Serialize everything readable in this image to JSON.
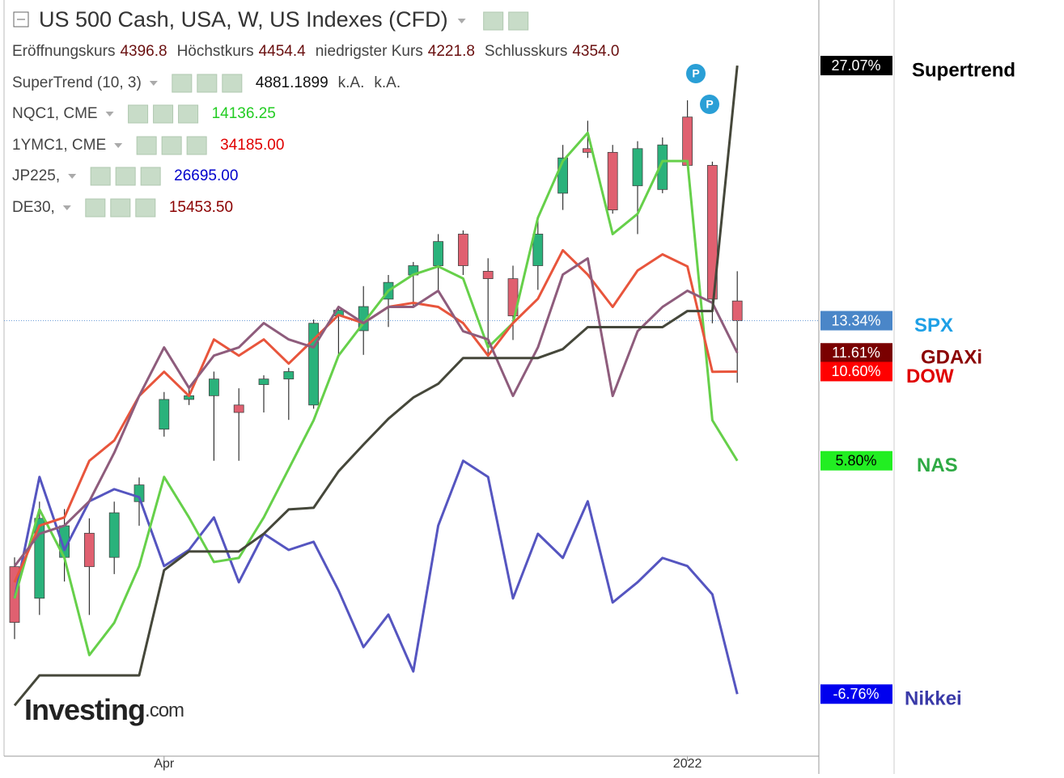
{
  "header": {
    "title": "US 500 Cash, USA, W, US Indexes (CFD)",
    "ohlc": [
      {
        "label": "Eröffnungskurs",
        "value": "4396.8"
      },
      {
        "label": "Höchstkurs",
        "value": "4454.4"
      },
      {
        "label": "niedrigster Kurs",
        "value": "4221.8"
      },
      {
        "label": "Schlusskurs",
        "value": "4354.0"
      }
    ],
    "indicators": [
      {
        "name": "SuperTrend (10, 3)",
        "values": [
          "4881.1899",
          "k.A.",
          "k.A."
        ],
        "color": "#111111"
      },
      {
        "name": "NQC1, CME",
        "values": [
          "14136.25"
        ],
        "color": "#22cc22"
      },
      {
        "name": "1YMC1, CME",
        "values": [
          "34185.00"
        ],
        "color": "#e00000"
      },
      {
        "name": "JP225,",
        "values": [
          "26695.00"
        ],
        "color": "#0000cc"
      },
      {
        "name": "DE30,",
        "values": [
          "15453.50"
        ],
        "color": "#8b0000"
      }
    ],
    "watermark": "Investing",
    "watermark_suffix": ".com"
  },
  "chart_data": {
    "type": "line",
    "categories": [
      null,
      null,
      null,
      null,
      null,
      null,
      "Apr",
      null,
      null,
      null,
      null,
      null,
      null,
      null,
      null,
      null,
      null,
      null,
      null,
      null,
      null,
      null,
      null,
      null,
      null,
      null,
      null,
      "2022",
      null,
      null
    ],
    "ylim": [
      -10.1,
      30.6
    ],
    "series": [
      {
        "name": "Supertrend",
        "type": "line",
        "color": "#45473a",
        "badge_color": "#000000",
        "badge_text": "#ffffff",
        "name_color": "#000000",
        "values": [
          -7.37,
          -5.75,
          -5.75,
          -5.75,
          -5.75,
          -5.75,
          -0.09,
          0.92,
          0.92,
          0.92,
          1.87,
          3.18,
          3.27,
          5.23,
          6.67,
          8.06,
          9.2,
          9.94,
          11.33,
          11.33,
          11.33,
          11.33,
          11.81,
          12.99,
          12.99,
          12.99,
          12.99,
          13.86,
          13.86,
          27.07
        ],
        "value_labels": [
          null,
          null,
          null,
          null,
          null,
          null,
          null,
          null,
          null,
          null,
          null,
          null,
          null,
          null,
          null,
          null,
          null,
          null,
          null,
          null,
          null,
          null,
          null,
          null,
          null,
          null,
          null,
          null,
          null,
          "27.07%"
        ]
      },
      {
        "name": "SPX",
        "type": "candlestick",
        "color": "#2ab27b",
        "down_color": "#e06070",
        "badge_color": "#4a86c8",
        "badge_text": "#ffffff",
        "name_color": "#1ea0e6",
        "open": [
          0.1,
          -1.6,
          0.6,
          1.9,
          0.6,
          3.6,
          7.5,
          9.1,
          9.3,
          8.8,
          9.9,
          10.2,
          8.8,
          13.6,
          12.8,
          14.5,
          15.8,
          16.3,
          18.0,
          16.0,
          15.6,
          16.3,
          20.2,
          22.6,
          22.4,
          20.6,
          20.4,
          24.3,
          21.7,
          14.4
        ],
        "high": [
          0.6,
          3.6,
          3.2,
          2.7,
          3.6,
          4.9,
          9.5,
          9.7,
          10.6,
          9.7,
          10.4,
          10.8,
          13.4,
          14.1,
          15.2,
          15.8,
          16.5,
          18.0,
          18.2,
          16.7,
          16.3,
          18.9,
          22.8,
          24.1,
          22.8,
          23.0,
          23.2,
          25.2,
          21.9,
          16.0
        ],
        "low": [
          -3.8,
          -2.5,
          -0.7,
          -2.5,
          -0.3,
          2.3,
          7.1,
          8.8,
          5.8,
          5.8,
          8.4,
          8.0,
          8.6,
          11.5,
          11.5,
          13.0,
          14.1,
          15.0,
          15.8,
          11.5,
          12.3,
          15.0,
          19.3,
          22.1,
          19.1,
          18.0,
          20.2,
          21.5,
          13.2,
          10.0
        ],
        "values": [
          -2.9,
          2.7,
          2.3,
          0.1,
          3.0,
          4.5,
          9.1,
          9.3,
          10.2,
          8.4,
          10.2,
          10.6,
          13.2,
          13.9,
          14.1,
          15.4,
          16.3,
          17.6,
          16.3,
          15.6,
          13.6,
          18.0,
          22.1,
          22.4,
          19.3,
          22.6,
          22.8,
          21.7,
          14.5,
          13.34
        ],
        "value_labels": [
          null,
          null,
          null,
          null,
          null,
          null,
          null,
          null,
          null,
          null,
          null,
          null,
          null,
          null,
          null,
          null,
          null,
          null,
          null,
          null,
          null,
          null,
          null,
          null,
          null,
          null,
          null,
          null,
          null,
          "13.34%"
        ]
      },
      {
        "name": "GDAXi",
        "type": "line",
        "color": "#8e5c7c",
        "badge_color": "#7a0000",
        "badge_text": "#ffffff",
        "name_color": "#8b0000",
        "values": [
          0.13,
          1.87,
          2.31,
          3.62,
          6.23,
          9.29,
          11.9,
          9.72,
          11.46,
          11.9,
          13.21,
          12.33,
          11.9,
          14.08,
          13.21,
          14.08,
          14.08,
          14.95,
          12.77,
          12.33,
          9.29,
          11.9,
          15.82,
          16.69,
          9.29,
          12.77,
          14.08,
          14.95,
          14.3,
          11.61
        ],
        "value_labels": [
          null,
          null,
          null,
          null,
          null,
          null,
          null,
          null,
          null,
          null,
          null,
          null,
          null,
          null,
          null,
          null,
          null,
          null,
          null,
          null,
          null,
          null,
          null,
          null,
          null,
          null,
          null,
          null,
          null,
          "11.61%"
        ]
      },
      {
        "name": "DOW",
        "type": "line",
        "color": "#e8553c",
        "badge_color": "#ff0000",
        "badge_text": "#ffffff",
        "name_color": "#e00000",
        "values": [
          -0.74,
          2.31,
          2.75,
          5.8,
          6.89,
          9.29,
          10.59,
          9.29,
          12.33,
          11.46,
          12.33,
          11.03,
          12.33,
          13.65,
          13.21,
          14.08,
          14.3,
          14.08,
          13.21,
          11.46,
          13.21,
          14.52,
          17.13,
          15.82,
          14.08,
          16.04,
          16.91,
          16.26,
          10.59,
          10.6
        ],
        "value_labels": [
          null,
          null,
          null,
          null,
          null,
          null,
          null,
          null,
          null,
          null,
          null,
          null,
          null,
          null,
          null,
          null,
          null,
          null,
          null,
          null,
          null,
          null,
          null,
          null,
          null,
          null,
          null,
          null,
          null,
          "10.60%"
        ]
      },
      {
        "name": "NAS",
        "type": "line",
        "color": "#66d04a",
        "badge_color": "#22ee22",
        "badge_text": "#000000",
        "name_color": "#2eaa44",
        "values": [
          -1.61,
          3.18,
          0.57,
          -4.66,
          -2.92,
          0.13,
          4.93,
          2.75,
          0.35,
          0.57,
          2.75,
          5.36,
          7.98,
          11.46,
          13.21,
          14.95,
          15.82,
          16.26,
          15.61,
          11.9,
          13.21,
          18.88,
          21.93,
          23.45,
          18.0,
          19.09,
          21.93,
          21.93,
          7.98,
          5.8
        ],
        "value_labels": [
          null,
          null,
          null,
          null,
          null,
          null,
          null,
          null,
          null,
          null,
          null,
          null,
          null,
          null,
          null,
          null,
          null,
          null,
          null,
          null,
          null,
          null,
          null,
          null,
          null,
          null,
          null,
          null,
          null,
          "5.80%"
        ]
      },
      {
        "name": "Nikkei",
        "type": "line",
        "color": "#5555c0",
        "badge_color": "#0000ee",
        "badge_text": "#ffffff",
        "name_color": "#3a3aa8",
        "values": [
          -1.61,
          4.93,
          1.0,
          3.62,
          4.27,
          3.84,
          0.13,
          1.0,
          2.75,
          -0.74,
          1.87,
          1.0,
          1.44,
          -1.18,
          -4.23,
          -2.48,
          -5.54,
          2.31,
          5.8,
          4.93,
          -1.61,
          1.87,
          0.57,
          3.62,
          -1.83,
          -0.74,
          0.57,
          0.13,
          -1.39,
          -6.76
        ],
        "value_labels": [
          null,
          null,
          null,
          null,
          null,
          null,
          null,
          null,
          null,
          null,
          null,
          null,
          null,
          null,
          null,
          null,
          null,
          null,
          null,
          null,
          null,
          null,
          null,
          null,
          null,
          null,
          null,
          null,
          null,
          "-6.76%"
        ]
      }
    ]
  }
}
